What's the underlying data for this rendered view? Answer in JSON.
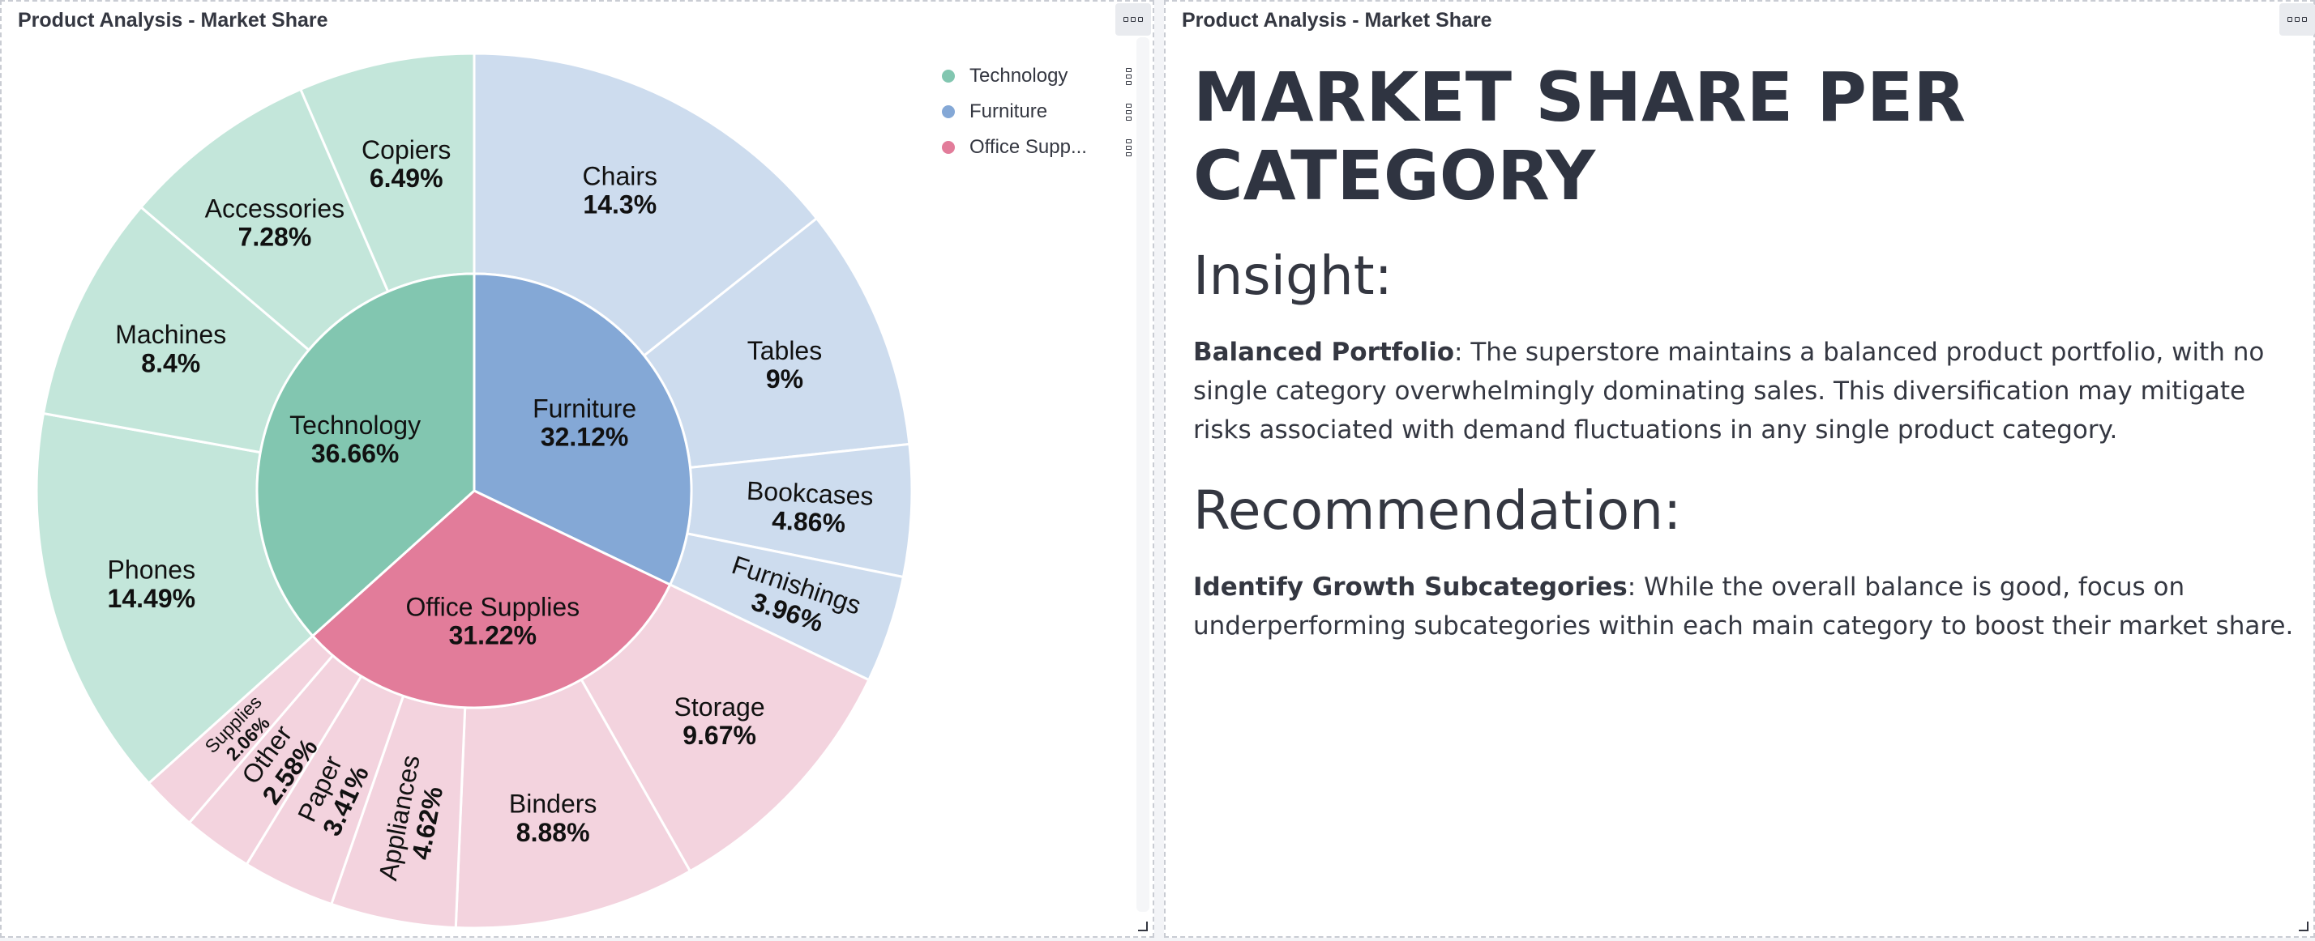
{
  "left_panel": {
    "title": "Product Analysis - Market Share",
    "menu_icon": "panel-options-icon"
  },
  "right_panel": {
    "title": "Product Analysis - Market Share",
    "menu_icon": "panel-options-icon",
    "heading": "MARKET SHARE PER CATEGORY",
    "insight_heading": "Insight:",
    "insight_bold": "Balanced Portfolio",
    "insight_text": ": The superstore maintains a balanced product portfolio, with no single category overwhelmingly dominating sales. This diversification may mitigate risks associated with demand fluctuations in any single product category.",
    "recommendation_heading": "Recommendation:",
    "recommendation_bold": "Identify Growth Subcategories",
    "recommendation_text": ": While the overall balance is good, focus on underperforming subcategories within each main category to boost their market share."
  },
  "legend": [
    {
      "label": "Technology",
      "color": "#82c6b0"
    },
    {
      "label": "Furniture",
      "color": "#84a8d6"
    },
    {
      "label": "Office Supp...",
      "color": "#e27c9a"
    }
  ],
  "chart_data": {
    "type": "pie",
    "variant": "sunburst",
    "categories": [
      {
        "name": "Furniture",
        "value": 32.12,
        "label": "32.12%",
        "color": "#84a8d6",
        "subcolor": "#cddcee",
        "children": [
          {
            "name": "Chairs",
            "value": 14.3,
            "label": "14.3%"
          },
          {
            "name": "Tables",
            "value": 9,
            "label": "9%"
          },
          {
            "name": "Bookcases",
            "value": 4.86,
            "label": "4.86%"
          },
          {
            "name": "Furnishings",
            "value": 3.96,
            "label": "3.96%"
          }
        ]
      },
      {
        "name": "Office Supplies",
        "value": 31.22,
        "label": "31.22%",
        "color": "#e27c9a",
        "subcolor": "#f3d3de",
        "children": [
          {
            "name": "Storage",
            "value": 9.67,
            "label": "9.67%"
          },
          {
            "name": "Binders",
            "value": 8.88,
            "label": "8.88%"
          },
          {
            "name": "Appliances",
            "value": 4.62,
            "label": "4.62%"
          },
          {
            "name": "Paper",
            "value": 3.41,
            "label": "3.41%"
          },
          {
            "name": "Other",
            "value": 2.58,
            "label": "2.58%"
          },
          {
            "name": "Supplies",
            "value": 2.06,
            "label": "2.06%"
          }
        ]
      },
      {
        "name": "Technology",
        "value": 36.66,
        "label": "36.66%",
        "color": "#82c6b0",
        "subcolor": "#c3e6da",
        "children": [
          {
            "name": "Phones",
            "value": 14.49,
            "label": "14.49%"
          },
          {
            "name": "Machines",
            "value": 8.4,
            "label": "8.4%"
          },
          {
            "name": "Accessories",
            "value": 7.28,
            "label": "7.28%"
          },
          {
            "name": "Copiers",
            "value": 6.49,
            "label": "6.49%"
          }
        ]
      }
    ]
  }
}
